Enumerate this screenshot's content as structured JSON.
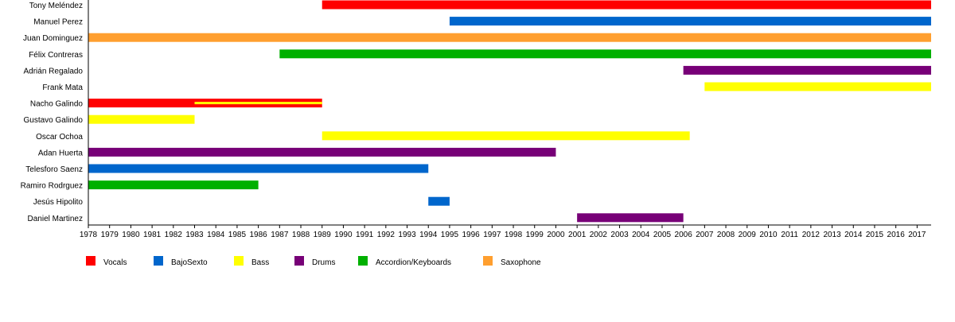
{
  "chart_data": {
    "type": "bar",
    "subtype": "timeline",
    "x_range": [
      1978,
      2017.66
    ],
    "x_ticks": [
      1978,
      1979,
      1980,
      1981,
      1982,
      1983,
      1984,
      1985,
      1986,
      1987,
      1988,
      1989,
      1990,
      1991,
      1992,
      1993,
      1994,
      1995,
      1996,
      1997,
      1998,
      1999,
      2000,
      2001,
      2002,
      2003,
      2004,
      2005,
      2006,
      2007,
      2008,
      2009,
      2010,
      2011,
      2012,
      2013,
      2014,
      2015,
      2016,
      2017
    ],
    "legend": [
      {
        "key": "vocals",
        "label": "Vocals",
        "color": "#ff0000"
      },
      {
        "key": "bajo",
        "label": "BajoSexto",
        "color": "#0066cc"
      },
      {
        "key": "bass",
        "label": "Bass",
        "color": "#ffff00"
      },
      {
        "key": "drums",
        "label": "Drums",
        "color": "#770077"
      },
      {
        "key": "accordion",
        "label": "Accordion/Keyboards",
        "color": "#00b000"
      },
      {
        "key": "sax",
        "label": "Saxophone",
        "color": "#ff9f2f"
      }
    ],
    "members": [
      {
        "name": "Tony Meléndez",
        "periods": [
          {
            "role": "vocals",
            "start": 1989,
            "end": 2017.66
          }
        ]
      },
      {
        "name": "Manuel Perez",
        "periods": [
          {
            "role": "bajo",
            "start": 1995,
            "end": 2017.66
          }
        ]
      },
      {
        "name": "Juan Dominguez",
        "periods": [
          {
            "role": "sax",
            "start": 1978,
            "end": 2017.66
          }
        ]
      },
      {
        "name": "Félix Contreras",
        "periods": [
          {
            "role": "accordion",
            "start": 1987,
            "end": 2017.66
          }
        ]
      },
      {
        "name": "Adrián Regalado",
        "periods": [
          {
            "role": "drums",
            "start": 2006,
            "end": 2017.66
          }
        ]
      },
      {
        "name": "Frank Mata",
        "periods": [
          {
            "role": "bass",
            "start": 2007,
            "end": 2017.66
          }
        ]
      },
      {
        "name": "Nacho Galindo",
        "periods": [
          {
            "role": "vocals",
            "start": 1978,
            "end": 1989
          },
          {
            "role": "bass",
            "start": 1983,
            "end": 1989,
            "thin": true
          }
        ]
      },
      {
        "name": "Gustavo Galindo",
        "periods": [
          {
            "role": "bass",
            "start": 1978,
            "end": 1983
          }
        ]
      },
      {
        "name": "Oscar Ochoa",
        "periods": [
          {
            "role": "bass",
            "start": 1989,
            "end": 2006.3
          }
        ]
      },
      {
        "name": "Adan Huerta",
        "periods": [
          {
            "role": "drums",
            "start": 1978,
            "end": 2000
          }
        ]
      },
      {
        "name": "Telesforo Saenz",
        "periods": [
          {
            "role": "bajo",
            "start": 1978,
            "end": 1994
          }
        ]
      },
      {
        "name": "Ramiro Rodrguez",
        "periods": [
          {
            "role": "accordion",
            "start": 1978,
            "end": 1986
          }
        ]
      },
      {
        "name": "Jesús Hipolito",
        "periods": [
          {
            "role": "bajo",
            "start": 1994,
            "end": 1995
          }
        ]
      },
      {
        "name": "Daniel Martinez",
        "periods": [
          {
            "role": "drums",
            "start": 2001,
            "end": 2006
          }
        ]
      }
    ]
  }
}
